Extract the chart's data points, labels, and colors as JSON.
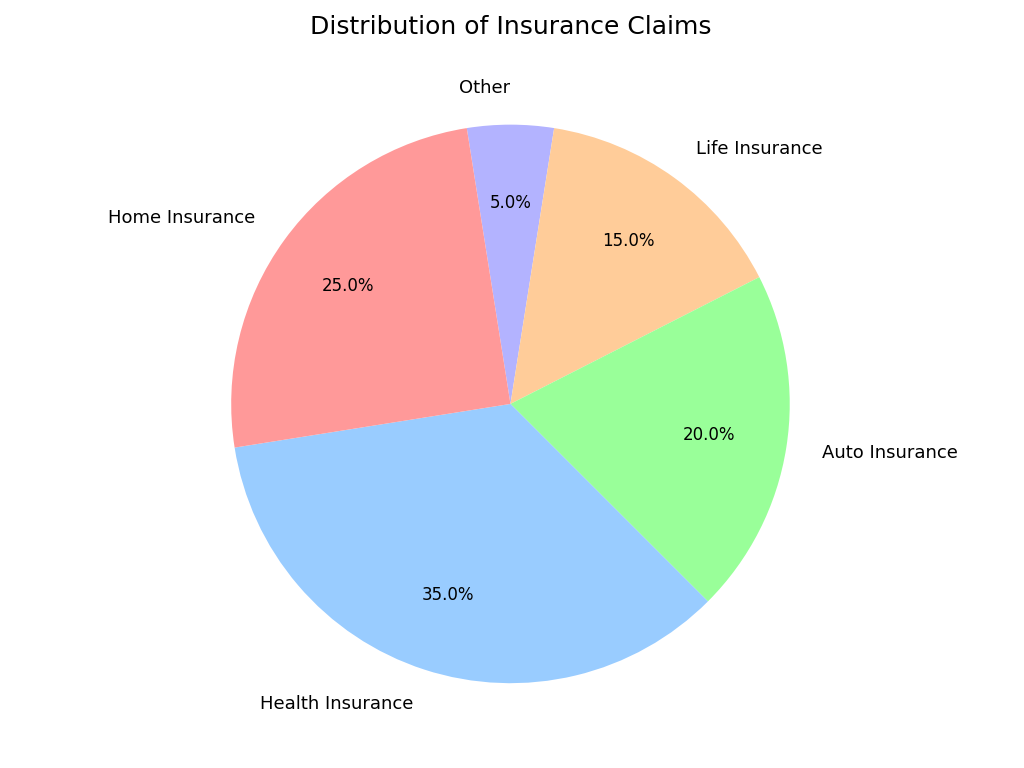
{
  "title": "Distribution of Insurance Claims",
  "labels": [
    "Other",
    "Life Insurance",
    "Auto Insurance",
    "Health Insurance",
    "Home Insurance"
  ],
  "values": [
    5.0,
    15.0,
    20.0,
    35.0,
    25.0
  ],
  "colors": [
    "#b3b3ff",
    "#ffcc99",
    "#99ff99",
    "#99ccff",
    "#ff9999"
  ],
  "startangle": 99,
  "background_color": "#ffffff",
  "title_fontsize": 18,
  "label_fontsize": 13,
  "autopct_fontsize": 12,
  "pctdistance": 0.72,
  "labeldistance": 1.13
}
